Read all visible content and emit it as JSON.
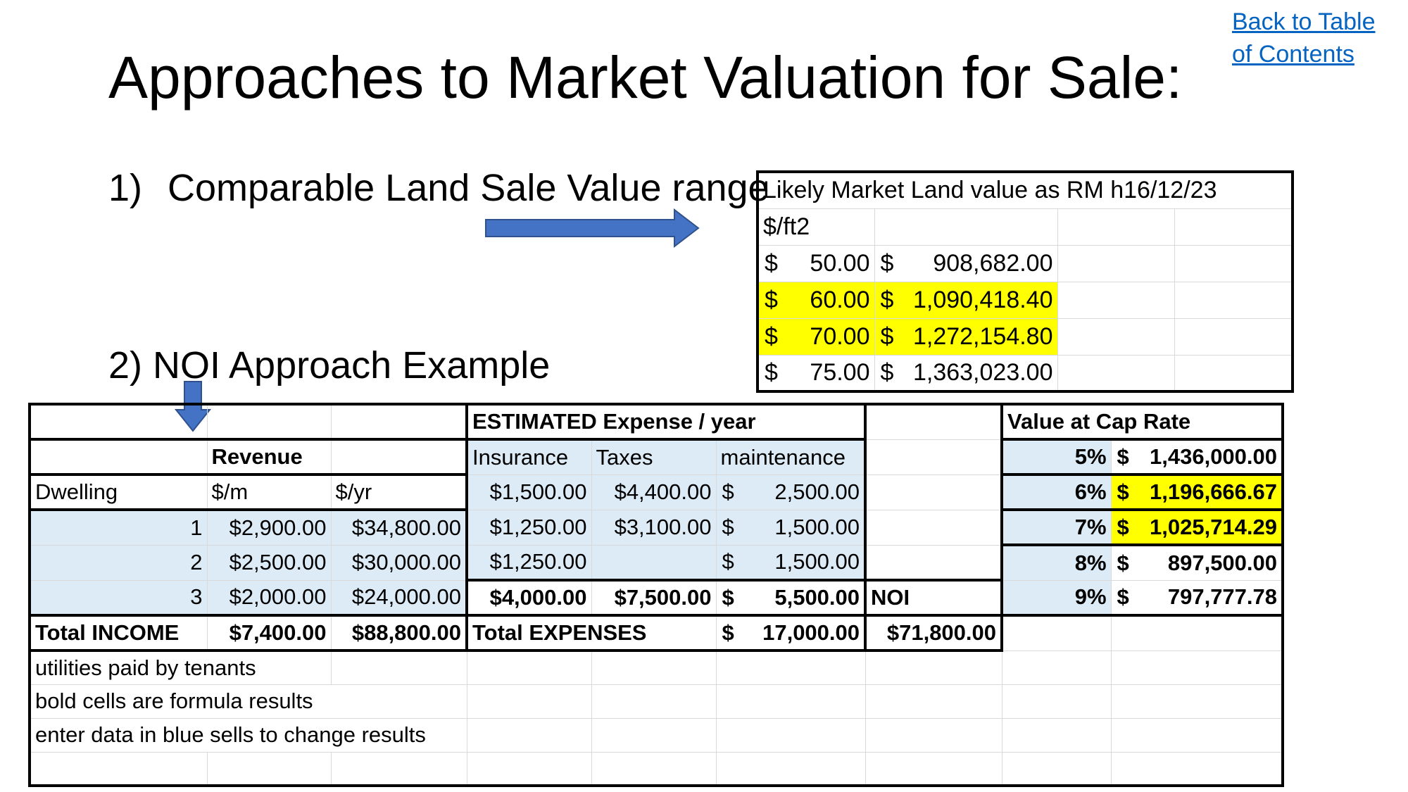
{
  "page": {
    "title": "Approaches to Market Valuation for Sale:",
    "toc_link": "Back to Table of Contents"
  },
  "sections": {
    "s1_num": "1)",
    "s1_label": "Comparable Land Sale Value range",
    "s2_label": "2) NOI Approach Example"
  },
  "land_table": {
    "header": "Likely Market Land value as RM h16/12/23",
    "unit": "$/ft2",
    "currency": "$",
    "rows": [
      {
        "rate": "50.00",
        "value": "908,682.00",
        "highlight": false
      },
      {
        "rate": "60.00",
        "value": "1,090,418.40",
        "highlight": true
      },
      {
        "rate": "70.00",
        "value": "1,272,154.80",
        "highlight": true
      },
      {
        "rate": "75.00",
        "value": "1,363,023.00",
        "highlight": false
      }
    ]
  },
  "noi_table": {
    "expense_header": "ESTIMATED Expense / year",
    "value_header": "Value at Cap Rate",
    "revenue_header": "Revenue",
    "col_dwelling": "Dwelling",
    "col_month": "$/m",
    "col_year": "$/yr",
    "col_insurance": "Insurance",
    "col_taxes": "Taxes",
    "col_maintenance": "maintenance",
    "noi_label": "NOI",
    "noi_value": "$71,800.00",
    "insurance_header_row": "$1,500.00",
    "taxes_header_row": "$4,400.00",
    "maint_header_row": "2,500.00",
    "dwellings": [
      {
        "id": "1",
        "month": "$2,900.00",
        "year": "$34,800.00",
        "insurance": "$1,250.00",
        "taxes": "$3,100.00",
        "maintenance": "1,500.00"
      },
      {
        "id": "2",
        "month": "$2,500.00",
        "year": "$30,000.00",
        "insurance": "$1,250.00",
        "taxes": "",
        "maintenance": "1,500.00"
      },
      {
        "id": "3",
        "month": "$2,000.00",
        "year": "$24,000.00",
        "insurance": "$4,000.00",
        "taxes": "$7,500.00",
        "maintenance": "5,500.00"
      }
    ],
    "total_income_label": "Total INCOME",
    "total_income_month": "$7,400.00",
    "total_income_year": "$88,800.00",
    "total_expenses_label": "Total EXPENSES",
    "total_expenses_value": "17,000.00",
    "cap_rates": [
      {
        "rate": "5%",
        "value": "1,436,000.00",
        "highlight": false
      },
      {
        "rate": "6%",
        "value": "1,196,666.67",
        "highlight": true
      },
      {
        "rate": "7%",
        "value": "1,025,714.29",
        "highlight": true
      },
      {
        "rate": "8%",
        "value": "897,500.00",
        "highlight": false
      },
      {
        "rate": "9%",
        "value": "797,777.78",
        "highlight": false
      }
    ],
    "notes": [
      "utilities paid by tenants",
      "bold cells are formula results",
      "enter data in blue sells to change results"
    ]
  },
  "colors": {
    "input_blue": "#DDEBF7",
    "highlight_yellow": "#FFFF00",
    "link_blue": "#0563C1",
    "arrow_blue": "#4472C4"
  }
}
